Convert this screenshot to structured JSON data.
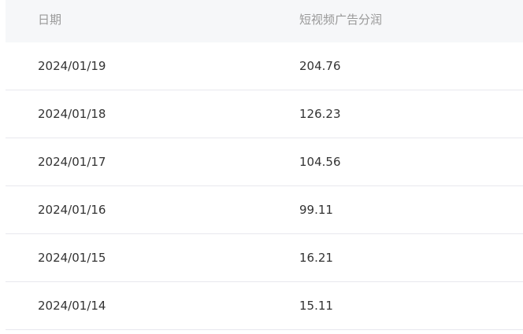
{
  "table": {
    "columns": [
      "日期",
      "短视频广告分润"
    ],
    "rows": [
      [
        "2024/01/19",
        "204.76"
      ],
      [
        "2024/01/18",
        "126.23"
      ],
      [
        "2024/01/17",
        "104.56"
      ],
      [
        "2024/01/16",
        "99.11"
      ],
      [
        "2024/01/15",
        "16.21"
      ],
      [
        "2024/01/14",
        "15.11"
      ]
    ]
  }
}
